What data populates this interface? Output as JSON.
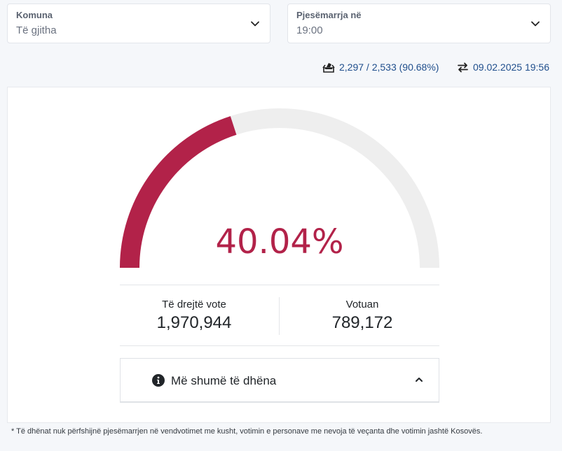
{
  "filters": {
    "municipality": {
      "label": "Komuna",
      "value": "Të gjitha"
    },
    "turnout_time": {
      "label": "Pjesëmarrja në",
      "value": "19:00"
    }
  },
  "summary": {
    "polling_stations": "2,297 / 2,533 (90.68%)",
    "updated": "09.02.2025 19:56",
    "ballot_icon": "ballot-box-icon",
    "sync_icon": "arrows-exchange-icon"
  },
  "gauge": {
    "percent_label": "40.04%",
    "fraction": 0.4004,
    "fill_color": "#b22249",
    "track_color": "#eeeeee"
  },
  "stats": {
    "eligible": {
      "label": "Të drejtë vote",
      "value": "1,970,944"
    },
    "voted": {
      "label": "Votuan",
      "value": "789,172"
    }
  },
  "more": {
    "label": "Më shumë të dhëna",
    "icon": "info-circle-icon"
  },
  "footnote": "* Të dhënat nuk përfshijnë pjesëmarrjen në vendvotimet me kusht, votimin e personave me nevoja të veçanta dhe votimin jashtë Kosovës."
}
